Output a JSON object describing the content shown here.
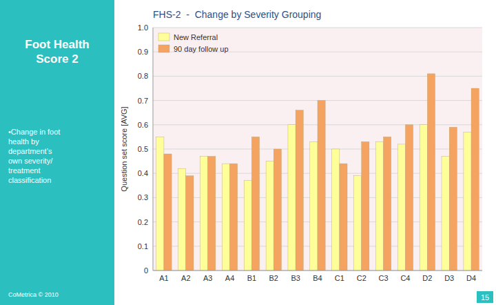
{
  "chart_data": {
    "type": "bar",
    "title": "FHS-2  -  Change by Severity Grouping",
    "ylabel": "Question set score [AVG]",
    "annotations": [
      "Foot Health\nScore 2",
      "•Change in foot\nhealth by\ndepartment’s\nown severity/\ntreatment\nclassification",
      "CoMetrica © 2010",
      "15"
    ],
    "categories": [
      "A1",
      "A2",
      "A3",
      "A4",
      "B1",
      "B2",
      "B3",
      "B4",
      "C1",
      "C2",
      "C3",
      "C4",
      "D2",
      "D3",
      "D4"
    ],
    "series": [
      {
        "name": "New Referral",
        "color": "#FFFF99",
        "values": [
          0.55,
          0.42,
          0.47,
          0.44,
          0.37,
          0.45,
          0.6,
          0.53,
          0.5,
          0.39,
          0.53,
          0.52,
          0.6,
          0.47,
          0.57
        ]
      },
      {
        "name": "90 day follow up",
        "color": "#F4A460",
        "values": [
          0.48,
          0.39,
          0.47,
          0.44,
          0.55,
          0.5,
          0.66,
          0.7,
          0.44,
          0.53,
          0.55,
          0.6,
          0.81,
          0.59,
          0.75
        ]
      }
    ],
    "ylim": [
      0,
      1.0
    ],
    "yticks": [
      0,
      0.1,
      0.2,
      0.3,
      0.4,
      0.5,
      0.6,
      0.7,
      0.8,
      0.9,
      {
        "value": 1.0,
        "label": "1.0"
      }
    ],
    "grid": true,
    "legend": "upper left"
  }
}
